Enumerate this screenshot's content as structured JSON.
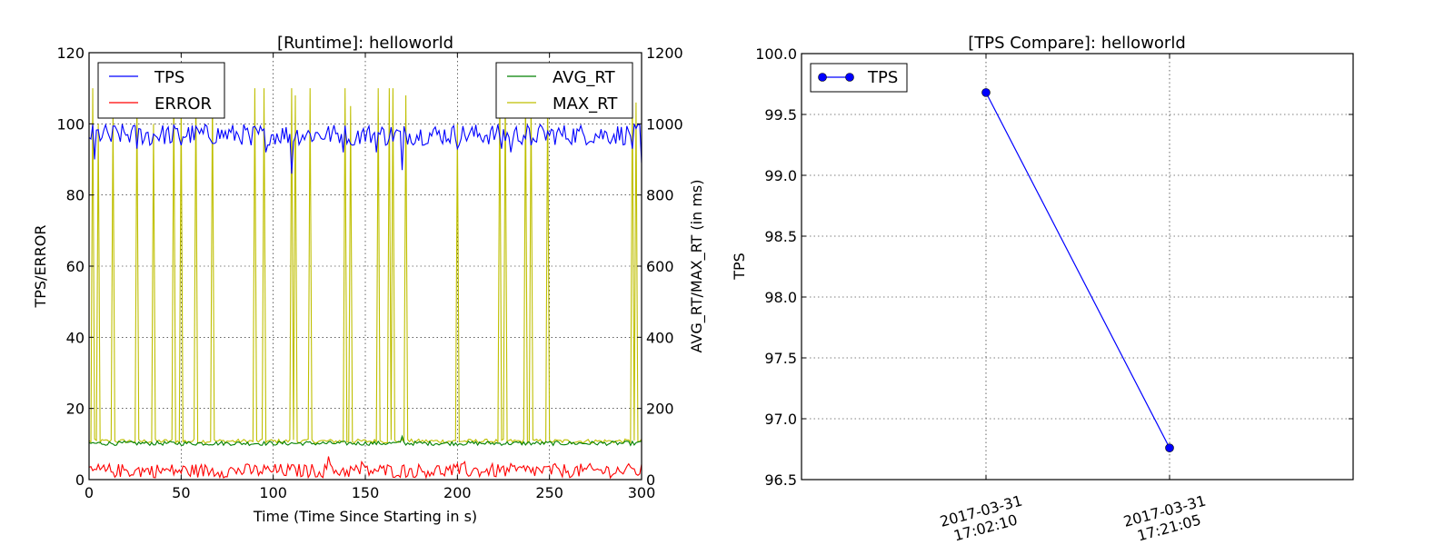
{
  "chart_data": [
    {
      "type": "line",
      "title": "[Runtime]: helloworld",
      "xlabel": "Time (Time Since Starting in s)",
      "ylabel": "TPS/ERROR",
      "ylabel_right": "AVG_RT/MAX_RT (in ms)",
      "xlim": [
        0,
        300
      ],
      "ylim": [
        0,
        120
      ],
      "ylim_right": [
        0,
        1200
      ],
      "xticks": [
        0,
        50,
        100,
        150,
        200,
        250,
        300
      ],
      "yticks": [
        0,
        20,
        40,
        60,
        80,
        100,
        120
      ],
      "yticks_right": [
        0,
        200,
        400,
        600,
        800,
        1000,
        1200
      ],
      "grid": true,
      "legend_left": {
        "placement": "top-left",
        "entries": [
          "TPS",
          "ERROR"
        ]
      },
      "legend_right": {
        "placement": "top-right",
        "entries": [
          "AVG_RT",
          "MAX_RT"
        ]
      },
      "series": [
        {
          "name": "TPS",
          "axis": "left",
          "color": "#0000ff",
          "baseline": 97,
          "amplitude": 3,
          "dips": [
            [
              3,
              90
            ],
            [
              12,
              95
            ],
            [
              26,
              93
            ],
            [
              33,
              94
            ],
            [
              45,
              95
            ],
            [
              50,
              94
            ],
            [
              88,
              94
            ],
            [
              96,
              92
            ],
            [
              110,
              86
            ],
            [
              138,
              92
            ],
            [
              143,
              94
            ],
            [
              156,
              92
            ],
            [
              161,
              94
            ],
            [
              170,
              87
            ],
            [
              200,
              93
            ],
            [
              224,
              93
            ],
            [
              229,
              92
            ],
            [
              240,
              94
            ],
            [
              295,
              93
            ],
            [
              300,
              89
            ]
          ]
        },
        {
          "name": "ERROR",
          "axis": "left",
          "color": "#ff0000",
          "baseline": 2,
          "amplitude": 2.5,
          "peaks": [
            [
              130,
              6.5
            ],
            [
              148,
              5
            ],
            [
              204,
              5
            ]
          ]
        },
        {
          "name": "AVG_RT",
          "axis": "right",
          "color": "#008000",
          "baseline": 102,
          "amplitude": 6,
          "peaks": [
            [
              170,
              122
            ],
            [
              300,
              108
            ]
          ]
        },
        {
          "name": "MAX_RT",
          "axis": "right",
          "color": "#bfbf00",
          "baseline": 108,
          "amplitude": 6,
          "spikes": [
            [
              2,
              1100
            ],
            [
              5,
              1000
            ],
            [
              13,
              1040
            ],
            [
              26,
              1080
            ],
            [
              35,
              1000
            ],
            [
              46,
              1100
            ],
            [
              50,
              1060
            ],
            [
              58,
              1100
            ],
            [
              67,
              1100
            ],
            [
              90,
              1100
            ],
            [
              95,
              1100
            ],
            [
              110,
              1100
            ],
            [
              112,
              1080
            ],
            [
              120,
              1100
            ],
            [
              139,
              1100
            ],
            [
              142,
              1050
            ],
            [
              157,
              1100
            ],
            [
              163,
              1100
            ],
            [
              165,
              1100
            ],
            [
              172,
              1080
            ],
            [
              200,
              1000
            ],
            [
              223,
              1100
            ],
            [
              226,
              1100
            ],
            [
              237,
              1100
            ],
            [
              240,
              1080
            ],
            [
              249,
              1100
            ],
            [
              295,
              1100
            ],
            [
              297,
              1060
            ]
          ]
        }
      ]
    },
    {
      "type": "line",
      "title": "[TPS Compare]: helloworld",
      "xlabel": "",
      "ylabel": "TPS",
      "categories": [
        "2017-03-31\n17:02:10",
        "2017-03-31\n17:21:05"
      ],
      "yticks": [
        "96.5",
        "97.0",
        "97.5",
        "98.0",
        "98.5",
        "99.0",
        "99.5",
        "100.0"
      ],
      "ylim": [
        96.5,
        100.0
      ],
      "grid": true,
      "legend": {
        "placement": "top-left",
        "entries": [
          "TPS"
        ]
      },
      "series": [
        {
          "name": "TPS",
          "color": "#0000ff",
          "values": [
            99.68,
            96.76
          ],
          "marker": "circle"
        }
      ]
    }
  ]
}
